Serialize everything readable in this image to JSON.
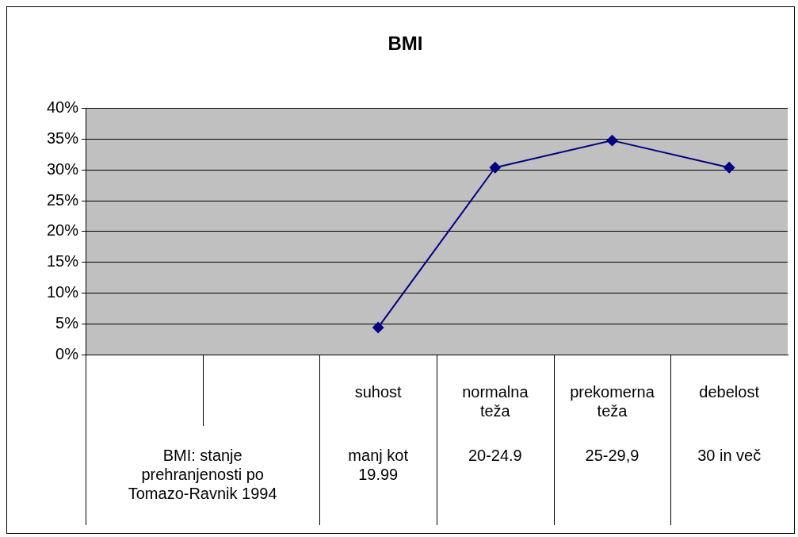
{
  "chart_data": {
    "type": "line",
    "title": "BMI",
    "categories": [
      null,
      null,
      "suhost",
      "normalna teža",
      "prekomerna teža",
      "debelost"
    ],
    "series": [
      {
        "color": "#000080",
        "values": [
          null,
          null,
          4.4,
          30.4,
          34.8,
          30.4
        ]
      }
    ],
    "ylim": [
      0,
      40
    ],
    "yticks": [
      {
        "value": 0,
        "label": "0%"
      },
      {
        "value": 5,
        "label": "5%"
      },
      {
        "value": 10,
        "label": "10%"
      },
      {
        "value": 15,
        "label": "15%"
      },
      {
        "value": 20,
        "label": "20%"
      },
      {
        "value": 25,
        "label": "25%"
      },
      {
        "value": 30,
        "label": "30%"
      },
      {
        "value": 35,
        "label": "35%"
      },
      {
        "value": 40,
        "label": "40%"
      }
    ],
    "annotations": [
      "BMI: stanje prehranjenosti po Tomazo-Ravnik 1994",
      "manj kot 19.99",
      "20-24.9",
      "25-29,9",
      "30 in več"
    ],
    "grid": "y",
    "legend": false,
    "marker": "diamond",
    "line_style": "solid"
  }
}
